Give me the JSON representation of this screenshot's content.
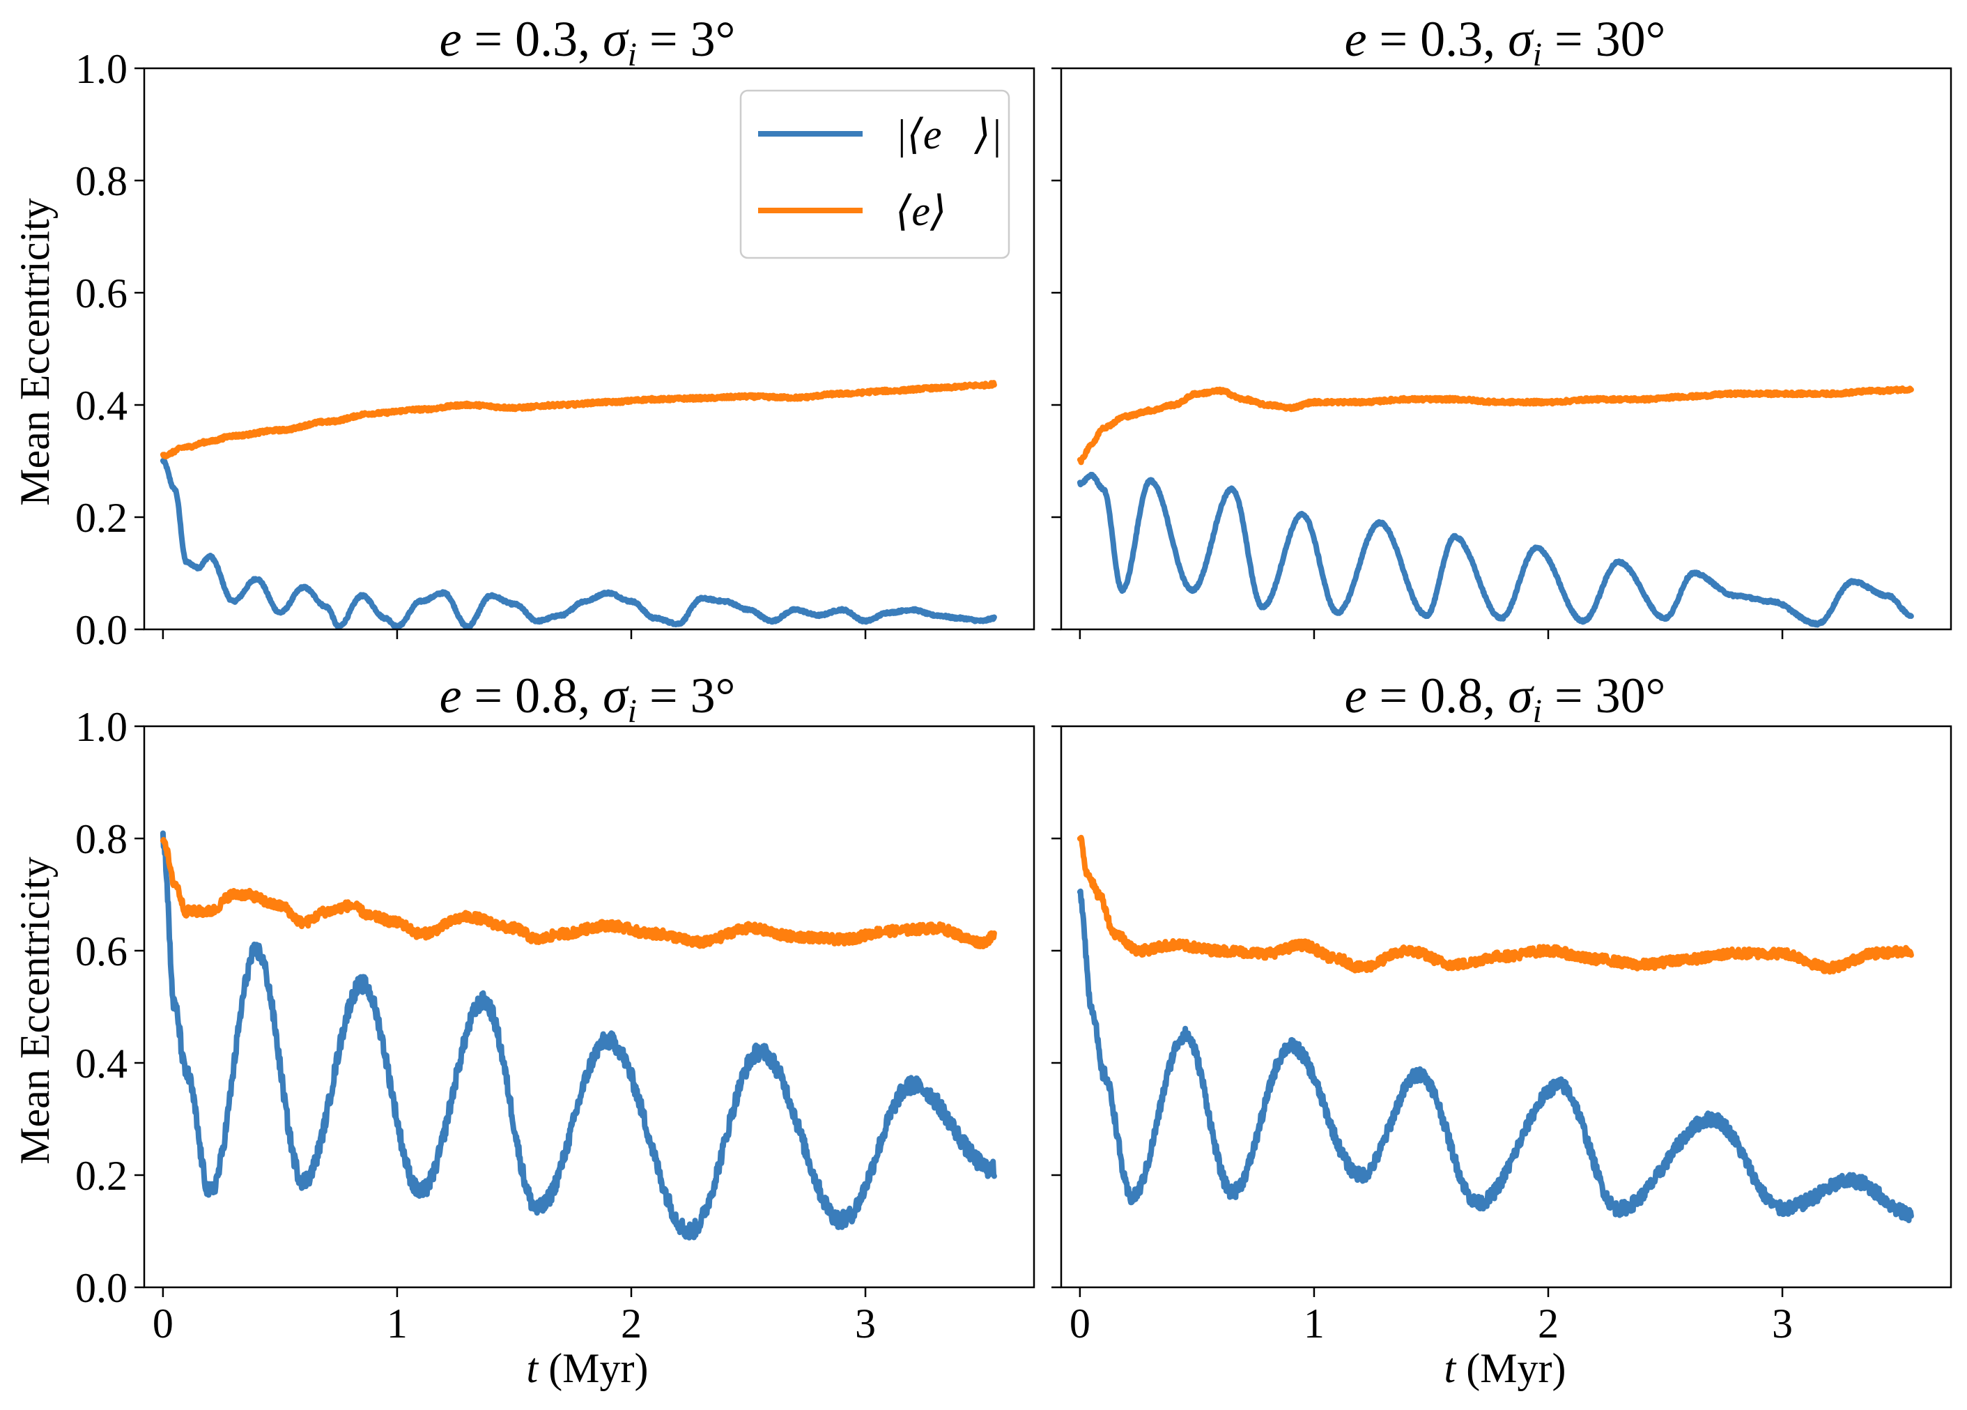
{
  "figure": {
    "ylabel": "Mean Eccentricity",
    "xlabel_var": "t",
    "xlabel_unit": " (Myr)",
    "legend": [
      {
        "name": "|⟨e⃗⟩|",
        "color": "#3a7dbb"
      },
      {
        "name": "⟨e⟩",
        "color": "#ff7f0e"
      }
    ],
    "x_ticks": [
      "0",
      "1",
      "2",
      "3"
    ],
    "y_ticks": [
      "0.0",
      "0.2",
      "0.4",
      "0.6",
      "0.8",
      "1.0"
    ]
  },
  "chart_data": [
    {
      "type": "line",
      "panel": "top-left",
      "title": {
        "e": "0.3",
        "sigma": "3°"
      },
      "xlim": [
        -0.08,
        3.72
      ],
      "ylim": [
        0.0,
        1.0
      ],
      "xticks": [
        0,
        1,
        2,
        3
      ],
      "yticks": [
        0.0,
        0.2,
        0.4,
        0.6,
        0.8,
        1.0
      ],
      "legend_position": "top-right",
      "series": [
        {
          "name": "|⟨e⃗⟩|",
          "color": "#3a7dbb",
          "noise": 0.002,
          "x": [
            0,
            0.05,
            0.1,
            0.15,
            0.2,
            0.3,
            0.4,
            0.5,
            0.6,
            0.7,
            0.75,
            0.85,
            0.95,
            1.0,
            1.1,
            1.2,
            1.3,
            1.4,
            1.5,
            1.6,
            1.7,
            1.8,
            1.9,
            2.0,
            2.1,
            2.2,
            2.3,
            2.4,
            2.5,
            2.6,
            2.7,
            2.8,
            2.9,
            3.0,
            3.1,
            3.2,
            3.3,
            3.4,
            3.5,
            3.55
          ],
          "y": [
            0.3,
            0.25,
            0.12,
            0.11,
            0.13,
            0.05,
            0.09,
            0.03,
            0.075,
            0.04,
            0.005,
            0.06,
            0.02,
            0.005,
            0.05,
            0.065,
            0.005,
            0.06,
            0.045,
            0.015,
            0.025,
            0.05,
            0.065,
            0.05,
            0.02,
            0.01,
            0.055,
            0.05,
            0.035,
            0.015,
            0.035,
            0.025,
            0.035,
            0.015,
            0.03,
            0.035,
            0.025,
            0.02,
            0.015,
            0.02
          ]
        },
        {
          "name": "⟨e⟩",
          "color": "#ff7f0e",
          "noise": 0.003,
          "x": [
            0,
            0.1,
            0.2,
            0.3,
            0.5,
            0.7,
            0.9,
            1.1,
            1.3,
            1.5,
            1.7,
            1.9,
            2.1,
            2.3,
            2.5,
            2.7,
            2.9,
            3.1,
            3.3,
            3.5,
            3.55
          ],
          "y": [
            0.31,
            0.325,
            0.335,
            0.345,
            0.355,
            0.37,
            0.385,
            0.392,
            0.4,
            0.395,
            0.4,
            0.405,
            0.41,
            0.412,
            0.415,
            0.413,
            0.42,
            0.425,
            0.43,
            0.435,
            0.437
          ]
        }
      ]
    },
    {
      "type": "line",
      "panel": "top-right",
      "title": {
        "e": "0.3",
        "sigma": "30°"
      },
      "xlim": [
        -0.08,
        3.72
      ],
      "ylim": [
        0.0,
        1.0
      ],
      "xticks": [
        0,
        1,
        2,
        3
      ],
      "yticks": [
        0.0,
        0.2,
        0.4,
        0.6,
        0.8,
        1.0
      ],
      "series": [
        {
          "name": "|⟨e⃗⟩|",
          "color": "#3a7dbb",
          "noise": 0.002,
          "x": [
            0,
            0.05,
            0.1,
            0.18,
            0.3,
            0.48,
            0.65,
            0.78,
            0.95,
            1.1,
            1.28,
            1.48,
            1.6,
            1.8,
            1.95,
            2.15,
            2.3,
            2.5,
            2.62,
            2.8,
            2.95,
            3.15,
            3.3,
            3.45,
            3.55
          ],
          "y": [
            0.26,
            0.275,
            0.25,
            0.07,
            0.265,
            0.07,
            0.25,
            0.04,
            0.205,
            0.03,
            0.19,
            0.025,
            0.165,
            0.02,
            0.145,
            0.015,
            0.12,
            0.02,
            0.1,
            0.06,
            0.05,
            0.01,
            0.085,
            0.06,
            0.025
          ]
        },
        {
          "name": "⟨e⟩",
          "color": "#ff7f0e",
          "noise": 0.003,
          "x": [
            0,
            0.05,
            0.1,
            0.2,
            0.3,
            0.4,
            0.5,
            0.6,
            0.7,
            0.8,
            0.9,
            1.0,
            1.2,
            1.4,
            1.6,
            1.8,
            2.0,
            2.2,
            2.4,
            2.6,
            2.8,
            3.0,
            3.2,
            3.4,
            3.55
          ],
          "y": [
            0.3,
            0.33,
            0.36,
            0.38,
            0.39,
            0.4,
            0.42,
            0.425,
            0.41,
            0.4,
            0.395,
            0.405,
            0.405,
            0.41,
            0.41,
            0.405,
            0.405,
            0.41,
            0.41,
            0.415,
            0.42,
            0.42,
            0.42,
            0.425,
            0.428
          ]
        }
      ]
    },
    {
      "type": "line",
      "panel": "bottom-left",
      "title": {
        "e": "0.8",
        "sigma": "3°"
      },
      "xlim": [
        -0.08,
        3.72
      ],
      "ylim": [
        0.0,
        1.0
      ],
      "xticks": [
        0,
        1,
        2,
        3
      ],
      "yticks": [
        0.0,
        0.2,
        0.4,
        0.6,
        0.8,
        1.0
      ],
      "series": [
        {
          "name": "|⟨e⃗⟩|",
          "color": "#3a7dbb",
          "noise": 0.015,
          "x": [
            0,
            0.05,
            0.1,
            0.2,
            0.4,
            0.6,
            0.85,
            1.1,
            1.37,
            1.6,
            1.9,
            2.25,
            2.55,
            2.9,
            3.2,
            3.55
          ],
          "y": [
            0.8,
            0.5,
            0.38,
            0.17,
            0.6,
            0.19,
            0.54,
            0.17,
            0.51,
            0.14,
            0.44,
            0.1,
            0.42,
            0.12,
            0.36,
            0.21
          ]
        },
        {
          "name": "⟨e⟩",
          "color": "#ff7f0e",
          "noise": 0.008,
          "x": [
            0,
            0.05,
            0.1,
            0.2,
            0.3,
            0.35,
            0.5,
            0.6,
            0.7,
            0.8,
            0.9,
            1.0,
            1.1,
            1.3,
            1.5,
            1.6,
            1.7,
            1.9,
            2.1,
            2.3,
            2.5,
            2.7,
            2.9,
            3.1,
            3.3,
            3.5,
            3.55
          ],
          "y": [
            0.8,
            0.72,
            0.67,
            0.67,
            0.7,
            0.7,
            0.68,
            0.65,
            0.67,
            0.68,
            0.66,
            0.65,
            0.63,
            0.66,
            0.64,
            0.62,
            0.63,
            0.645,
            0.63,
            0.615,
            0.64,
            0.625,
            0.62,
            0.635,
            0.64,
            0.615,
            0.625
          ]
        }
      ]
    },
    {
      "type": "line",
      "panel": "bottom-right",
      "title": {
        "e": "0.8",
        "sigma": "30°"
      },
      "xlim": [
        -0.08,
        3.72
      ],
      "ylim": [
        0.0,
        1.0
      ],
      "xticks": [
        0,
        1,
        2,
        3
      ],
      "yticks": [
        0.0,
        0.2,
        0.4,
        0.6,
        0.8,
        1.0
      ],
      "series": [
        {
          "name": "|⟨e⃗⟩|",
          "color": "#3a7dbb",
          "noise": 0.012,
          "x": [
            0,
            0.05,
            0.1,
            0.22,
            0.45,
            0.65,
            0.9,
            1.2,
            1.45,
            1.7,
            2.05,
            2.3,
            2.7,
            3.0,
            3.3,
            3.55
          ],
          "y": [
            0.7,
            0.5,
            0.38,
            0.16,
            0.45,
            0.17,
            0.43,
            0.2,
            0.38,
            0.15,
            0.36,
            0.14,
            0.3,
            0.14,
            0.19,
            0.13
          ]
        },
        {
          "name": "⟨e⟩",
          "color": "#ff7f0e",
          "noise": 0.008,
          "x": [
            0,
            0.03,
            0.08,
            0.15,
            0.25,
            0.4,
            0.6,
            0.8,
            0.95,
            1.1,
            1.2,
            1.4,
            1.6,
            1.8,
            2.0,
            2.2,
            2.4,
            2.6,
            2.8,
            3.0,
            3.2,
            3.4,
            3.55
          ],
          "y": [
            0.8,
            0.74,
            0.7,
            0.63,
            0.6,
            0.61,
            0.6,
            0.595,
            0.61,
            0.585,
            0.57,
            0.6,
            0.575,
            0.59,
            0.6,
            0.585,
            0.575,
            0.585,
            0.595,
            0.595,
            0.57,
            0.595,
            0.6
          ]
        }
      ]
    }
  ]
}
